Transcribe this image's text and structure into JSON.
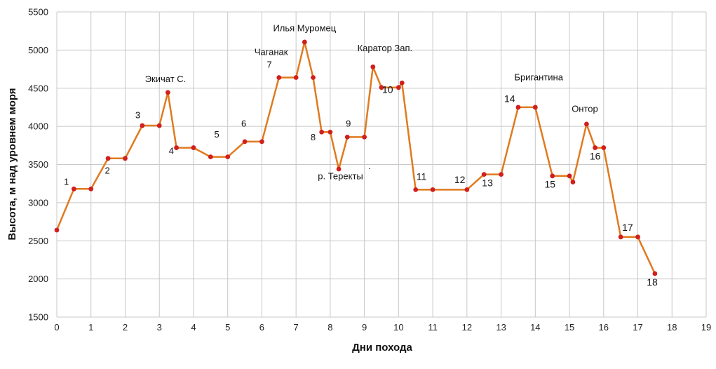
{
  "chart_data": {
    "type": "line",
    "title": "",
    "xlabel": "Дни похода",
    "ylabel": "Высота, м над уровнем моря",
    "xlim": [
      0,
      19
    ],
    "ylim": [
      1500,
      5500
    ],
    "x_ticks": [
      0,
      1,
      2,
      3,
      4,
      5,
      6,
      7,
      8,
      9,
      10,
      11,
      12,
      13,
      14,
      15,
      16,
      17,
      18,
      19
    ],
    "y_ticks": [
      1500,
      2000,
      2500,
      3000,
      3500,
      4000,
      4500,
      5000,
      5500
    ],
    "grid": true,
    "colors": {
      "line": "#e07a1f",
      "marker": "#d0201e",
      "grid": "#c8c8c8"
    },
    "series": [
      {
        "x": [
          0,
          0.5,
          1,
          1.5,
          2,
          2.5,
          3,
          3.25,
          3.5,
          4,
          4.5,
          5,
          5.5,
          6,
          6.5,
          7,
          7.25,
          7.5,
          7.75,
          8,
          8.25,
          8.5,
          9,
          9.25,
          9.5,
          10,
          10.1,
          10.5,
          11,
          12,
          12.5,
          13,
          13.5,
          14,
          14.5,
          15,
          15.1,
          15.5,
          15.75,
          16,
          16.5,
          17,
          17.5
        ],
        "y": [
          2640,
          3180,
          3180,
          3580,
          3580,
          4010,
          4010,
          4445,
          3720,
          3720,
          3600,
          3600,
          3800,
          3800,
          4640,
          4640,
          5105,
          4640,
          3925,
          3925,
          3440,
          3860,
          3860,
          4780,
          4510,
          4510,
          4570,
          3170,
          3170,
          3170,
          3370,
          3370,
          4250,
          4250,
          3350,
          3350,
          3270,
          4030,
          3720,
          3720,
          2550,
          2550,
          2070
        ]
      }
    ],
    "annotations": [
      {
        "text": "1",
        "x": 0.28,
        "y": 3235
      },
      {
        "text": "2",
        "x": 1.48,
        "y": 3380
      },
      {
        "text": "3",
        "x": 2.37,
        "y": 4105
      },
      {
        "text": "Экичат С.",
        "x": 3.18,
        "y": 4580
      },
      {
        "text": "4",
        "x": 3.35,
        "y": 3640
      },
      {
        "text": "5",
        "x": 4.68,
        "y": 3855
      },
      {
        "text": "6",
        "x": 5.47,
        "y": 3995
      },
      {
        "text": "Чаганак",
        "x": 6.27,
        "y": 4935
      },
      {
        "text": "7",
        "x": 6.22,
        "y": 4770
      },
      {
        "text": "Илья Муромец",
        "x": 7.25,
        "y": 5245
      },
      {
        "text": "8",
        "x": 7.5,
        "y": 3815
      },
      {
        "text": "9",
        "x": 8.53,
        "y": 3995
      },
      {
        "text": "р. Теректы",
        "x": 8.3,
        "y": 3305
      },
      {
        "text": ".",
        "x": 9.15,
        "y": 3440
      },
      {
        "text": "Каратор Зап.",
        "x": 9.6,
        "y": 4985
      },
      {
        "text": "10",
        "x": 9.68,
        "y": 4440
      },
      {
        "text": "11",
        "x": 10.67,
        "y": 3300
      },
      {
        "text": "12",
        "x": 11.79,
        "y": 3255
      },
      {
        "text": "13",
        "x": 12.6,
        "y": 3215
      },
      {
        "text": "Бригантина",
        "x": 14.1,
        "y": 4605
      },
      {
        "text": "14",
        "x": 13.25,
        "y": 4320
      },
      {
        "text": "Онтор",
        "x": 15.45,
        "y": 4190
      },
      {
        "text": "15",
        "x": 14.43,
        "y": 3195
      },
      {
        "text": "16",
        "x": 15.75,
        "y": 3565
      },
      {
        "text": "17",
        "x": 16.7,
        "y": 2630
      },
      {
        "text": "18",
        "x": 17.42,
        "y": 1915
      }
    ]
  }
}
